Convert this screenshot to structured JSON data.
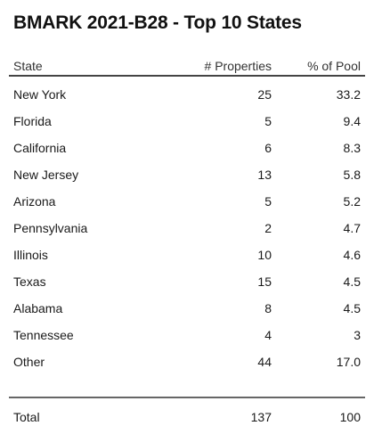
{
  "chart_data": {
    "type": "table",
    "title": "BMARK 2021-B28 - Top 10 States",
    "columns": [
      "State",
      "# Properties",
      "% of Pool"
    ],
    "rows": [
      {
        "state": "New York",
        "properties": "25",
        "pool": "33.2"
      },
      {
        "state": "Florida",
        "properties": "5",
        "pool": "9.4"
      },
      {
        "state": "California",
        "properties": "6",
        "pool": "8.3"
      },
      {
        "state": "New Jersey",
        "properties": "13",
        "pool": "5.8"
      },
      {
        "state": "Arizona",
        "properties": "5",
        "pool": "5.2"
      },
      {
        "state": "Pennsylvania",
        "properties": "2",
        "pool": "4.7"
      },
      {
        "state": "Illinois",
        "properties": "10",
        "pool": "4.6"
      },
      {
        "state": "Texas",
        "properties": "15",
        "pool": "4.5"
      },
      {
        "state": "Alabama",
        "properties": "8",
        "pool": "4.5"
      },
      {
        "state": "Tennessee",
        "properties": "4",
        "pool": "3"
      },
      {
        "state": "Other",
        "properties": "44",
        "pool": "17.0"
      }
    ],
    "total": {
      "state": "Total",
      "properties": "137",
      "pool": "100"
    }
  }
}
